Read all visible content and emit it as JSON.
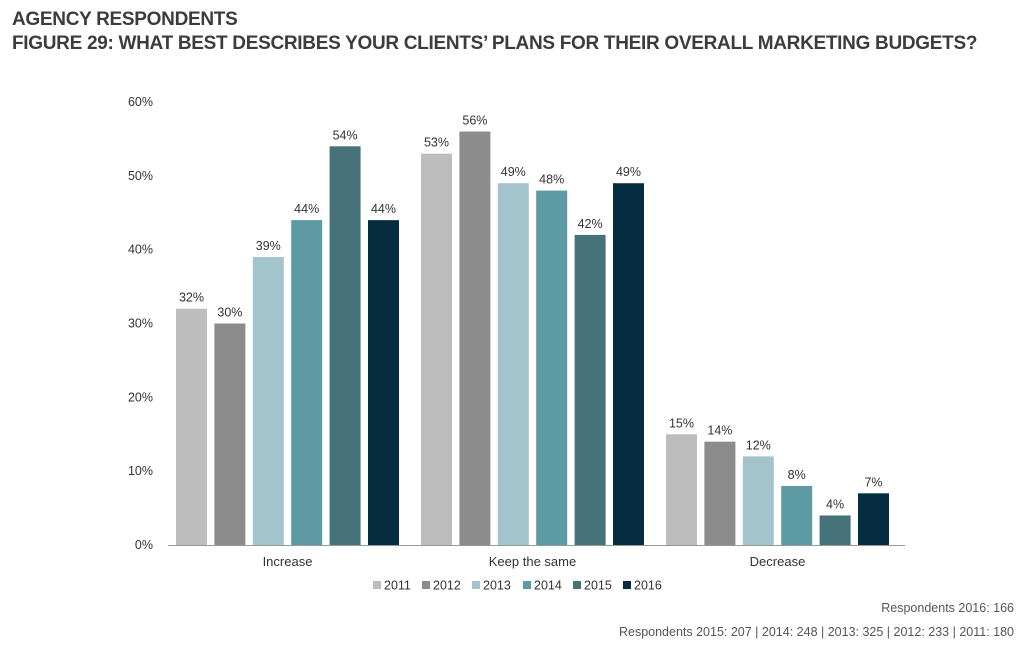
{
  "header": {
    "line1": "AGENCY RESPONDENTS",
    "line2": "FIGURE 29: WHAT BEST DESCRIBES YOUR CLIENTS’ PLANS FOR THEIR OVERALL MARKETING BUDGETS?"
  },
  "chart_data": {
    "type": "bar",
    "categories": [
      "Increase",
      "Keep the same",
      "Decrease"
    ],
    "series": [
      {
        "name": "2011",
        "color": "#bdbdbd",
        "values": [
          32,
          53,
          15
        ]
      },
      {
        "name": "2012",
        "color": "#8c8c8c",
        "values": [
          30,
          56,
          14
        ]
      },
      {
        "name": "2013",
        "color": "#a3c4cc",
        "values": [
          39,
          49,
          12
        ]
      },
      {
        "name": "2014",
        "color": "#5e9aa3",
        "values": [
          44,
          48,
          8
        ]
      },
      {
        "name": "2015",
        "color": "#46737a",
        "values": [
          54,
          42,
          4
        ]
      },
      {
        "name": "2016",
        "color": "#062c40",
        "values": [
          44,
          49,
          7
        ]
      }
    ],
    "ylim": [
      0,
      60
    ],
    "yticks": [
      0,
      10,
      20,
      30,
      40,
      50,
      60
    ],
    "ytick_labels": [
      "0%",
      "10%",
      "20%",
      "30%",
      "40%",
      "50%",
      "60%"
    ],
    "value_suffix": "%",
    "legend_position": "bottom-center",
    "grid": false
  },
  "footnotes": {
    "line1": "Respondents 2016: 166",
    "line2": "Respondents 2015: 207 | 2014: 248 | 2013: 325 | 2012: 233 | 2011: 180"
  }
}
